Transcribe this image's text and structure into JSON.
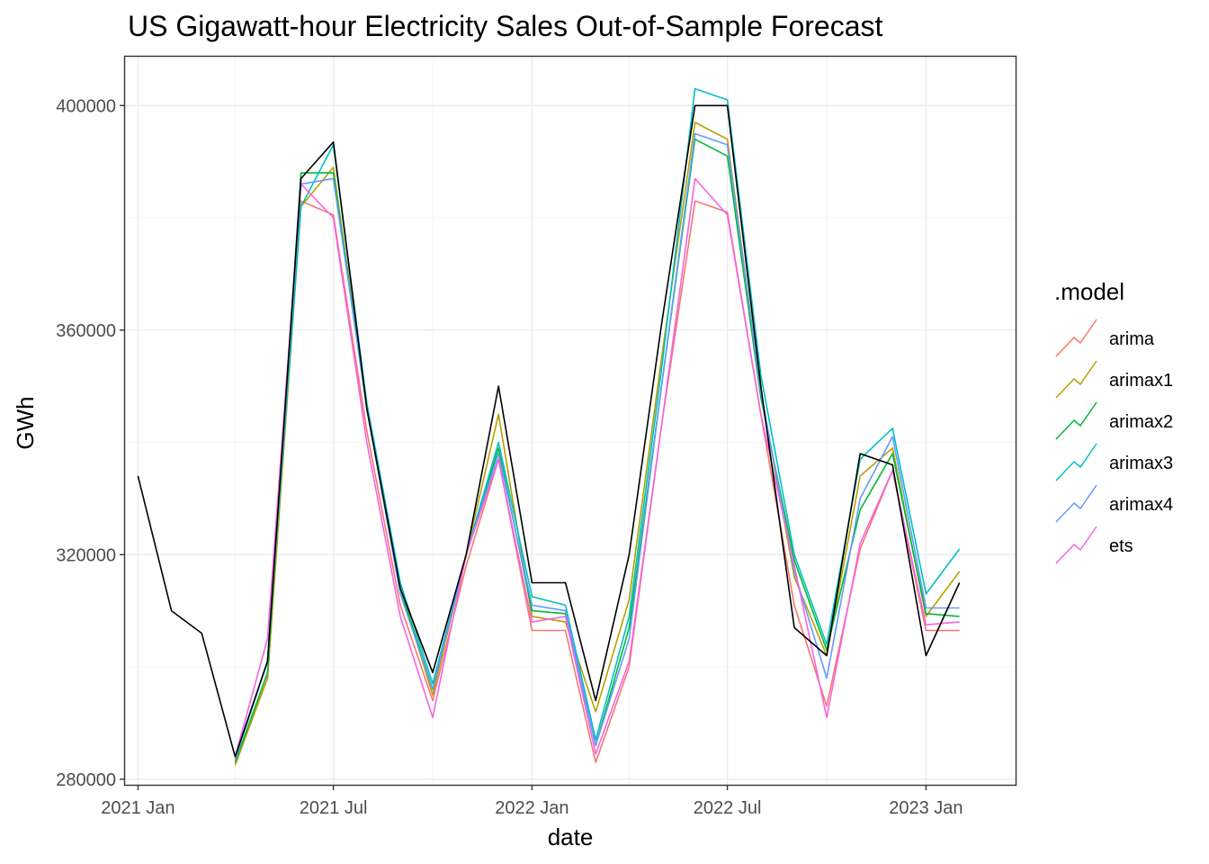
{
  "chart_data": {
    "type": "line",
    "title": "US Gigawatt-hour Electricity Sales Out-of-Sample Forecast",
    "xlabel": "date",
    "ylabel": "GWh",
    "x_start": "2021-01",
    "x_ticks": [
      {
        "index": 0,
        "label": "2021 Jan"
      },
      {
        "index": 6,
        "label": "2021 Jul"
      },
      {
        "index": 12,
        "label": "2022 Jan"
      },
      {
        "index": 18,
        "label": "2022 Jul"
      },
      {
        "index": 24,
        "label": "2023 Jan"
      }
    ],
    "xlim": [
      "2020-12-20",
      "2023-03-25"
    ],
    "y_ticks": [
      280000,
      320000,
      360000,
      400000
    ],
    "ylim": [
      279000,
      408700
    ],
    "grid": true,
    "legend": {
      "title": ".model",
      "position": "right"
    },
    "actual": {
      "dates": [
        "2021-01",
        "2021-02",
        "2021-03",
        "2021-04",
        "2021-05",
        "2021-06",
        "2021-07",
        "2021-08",
        "2021-09",
        "2021-10",
        "2021-11",
        "2021-12",
        "2022-01",
        "2022-02",
        "2022-03",
        "2022-04",
        "2022-05",
        "2022-06",
        "2022-07",
        "2022-08",
        "2022-09",
        "2022-10",
        "2022-11",
        "2022-12",
        "2023-01",
        "2023-02",
        "2023-03"
      ],
      "values": [
        334000,
        310000,
        306000,
        284000,
        301000,
        387000,
        393500,
        346000,
        314000,
        299000,
        320000,
        350000,
        315000,
        315000,
        294000,
        320000,
        361000,
        400000,
        400000,
        350000,
        307000,
        302000,
        338000,
        336000,
        302000,
        315000,
        null
      ],
      "color": "#000000"
    },
    "forecast_dates": [
      "2021-04",
      "2021-05",
      "2021-06",
      "2021-07",
      "2021-08",
      "2021-09",
      "2021-10",
      "2021-11",
      "2021-12",
      "2022-01",
      "2022-02",
      "2022-03",
      "2022-04",
      "2022-05",
      "2022-06",
      "2022-07",
      "2022-08",
      "2022-09",
      "2022-10",
      "2022-11",
      "2022-12",
      "2023-01",
      "2023-02",
      "2023-03"
    ],
    "series": [
      {
        "name": "arima",
        "color": "#F8766D",
        "values": [
          283000,
          298000,
          383000,
          380500,
          342000,
          311000,
          294000,
          318000,
          337000,
          306500,
          306500,
          283000,
          300000,
          343000,
          383000,
          381000,
          345000,
          311000,
          293000,
          321000,
          335000,
          306500,
          306500,
          null
        ]
      },
      {
        "name": "arimax1",
        "color": "#B79F00",
        "values": [
          282500,
          298000,
          382000,
          389000,
          346000,
          314000,
          295000,
          320000,
          345000,
          309000,
          308000,
          292000,
          312000,
          355000,
          397000,
          394000,
          349000,
          316000,
          302000,
          334000,
          339000,
          309000,
          317000,
          null
        ]
      },
      {
        "name": "arimax2",
        "color": "#00BA38",
        "values": [
          283000,
          299000,
          388000,
          388000,
          346000,
          314000,
          296000,
          320000,
          339000,
          310000,
          309500,
          286000,
          307000,
          350000,
          394000,
          391000,
          348000,
          319000,
          303000,
          328000,
          338000,
          309500,
          309000,
          null
        ]
      },
      {
        "name": "arimax3",
        "color": "#00BFC4",
        "values": [
          284000,
          301000,
          382000,
          393000,
          347000,
          315000,
          297000,
          320000,
          340000,
          312500,
          311000,
          287000,
          309000,
          353000,
          403000,
          401000,
          352000,
          320000,
          304000,
          337000,
          342500,
          313000,
          321000,
          null
        ]
      },
      {
        "name": "arimax4",
        "color": "#619CFF",
        "values": [
          283500,
          301000,
          386000,
          387000,
          346000,
          313000,
          296000,
          320000,
          338000,
          311000,
          310000,
          286000,
          305000,
          350000,
          395000,
          393000,
          349000,
          317000,
          298000,
          330000,
          341000,
          310500,
          310500,
          null
        ]
      },
      {
        "name": "ets",
        "color": "#F564E3",
        "values": [
          284000,
          305000,
          386000,
          380000,
          340000,
          309000,
          291000,
          320000,
          337000,
          308000,
          309000,
          284500,
          301000,
          343000,
          387000,
          380500,
          345000,
          318000,
          291000,
          322000,
          335000,
          307500,
          308000,
          null
        ]
      }
    ]
  }
}
